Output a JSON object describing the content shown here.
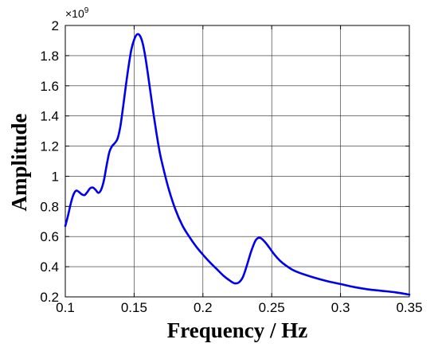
{
  "chart_data": {
    "type": "line",
    "xlabel": "Frequency / Hz",
    "ylabel": "Amplitude",
    "xlim": [
      0.1,
      0.35
    ],
    "ylim": [
      0.2,
      2
    ],
    "x_ticks": [
      "0.1",
      "0.15",
      "0.2",
      "0.25",
      "0.3",
      "0.35"
    ],
    "y_ticks": [
      "0.2",
      "0.4",
      "0.6",
      "0.8",
      "1",
      "1.2",
      "1.4",
      "1.6",
      "1.8",
      "2"
    ],
    "x_tick_values": [
      0.1,
      0.15,
      0.2,
      0.25,
      0.3,
      0.35
    ],
    "y_tick_values": [
      0.2,
      0.4,
      0.6,
      0.8,
      1.0,
      1.2,
      1.4,
      1.6,
      1.8,
      2.0
    ],
    "y_multiplier_base": "×10",
    "y_multiplier_exp": "9",
    "grid": true,
    "line_color": "#0000ee",
    "series": [
      {
        "points": [
          [
            0.1,
            0.67
          ],
          [
            0.102,
            0.74
          ],
          [
            0.104,
            0.82
          ],
          [
            0.106,
            0.88
          ],
          [
            0.108,
            0.905
          ],
          [
            0.11,
            0.895
          ],
          [
            0.112,
            0.88
          ],
          [
            0.114,
            0.875
          ],
          [
            0.116,
            0.895
          ],
          [
            0.118,
            0.92
          ],
          [
            0.12,
            0.925
          ],
          [
            0.122,
            0.91
          ],
          [
            0.124,
            0.89
          ],
          [
            0.126,
            0.91
          ],
          [
            0.128,
            0.97
          ],
          [
            0.13,
            1.07
          ],
          [
            0.132,
            1.16
          ],
          [
            0.134,
            1.2
          ],
          [
            0.136,
            1.22
          ],
          [
            0.138,
            1.25
          ],
          [
            0.14,
            1.33
          ],
          [
            0.142,
            1.46
          ],
          [
            0.144,
            1.6
          ],
          [
            0.146,
            1.73
          ],
          [
            0.148,
            1.84
          ],
          [
            0.15,
            1.905
          ],
          [
            0.152,
            1.94
          ],
          [
            0.154,
            1.935
          ],
          [
            0.156,
            1.89
          ],
          [
            0.158,
            1.8
          ],
          [
            0.16,
            1.68
          ],
          [
            0.162,
            1.55
          ],
          [
            0.164,
            1.42
          ],
          [
            0.166,
            1.3
          ],
          [
            0.168,
            1.19
          ],
          [
            0.17,
            1.1
          ],
          [
            0.175,
            0.92
          ],
          [
            0.18,
            0.78
          ],
          [
            0.185,
            0.675
          ],
          [
            0.19,
            0.6
          ],
          [
            0.195,
            0.535
          ],
          [
            0.2,
            0.48
          ],
          [
            0.205,
            0.43
          ],
          [
            0.21,
            0.385
          ],
          [
            0.215,
            0.34
          ],
          [
            0.22,
            0.305
          ],
          [
            0.223,
            0.29
          ],
          [
            0.226,
            0.295
          ],
          [
            0.229,
            0.33
          ],
          [
            0.232,
            0.41
          ],
          [
            0.235,
            0.5
          ],
          [
            0.238,
            0.57
          ],
          [
            0.24,
            0.59
          ],
          [
            0.242,
            0.59
          ],
          [
            0.245,
            0.565
          ],
          [
            0.248,
            0.53
          ],
          [
            0.252,
            0.48
          ],
          [
            0.256,
            0.44
          ],
          [
            0.26,
            0.41
          ],
          [
            0.265,
            0.38
          ],
          [
            0.27,
            0.36
          ],
          [
            0.28,
            0.33
          ],
          [
            0.29,
            0.305
          ],
          [
            0.3,
            0.285
          ],
          [
            0.31,
            0.265
          ],
          [
            0.32,
            0.25
          ],
          [
            0.33,
            0.24
          ],
          [
            0.34,
            0.23
          ],
          [
            0.35,
            0.215
          ]
        ]
      }
    ]
  }
}
